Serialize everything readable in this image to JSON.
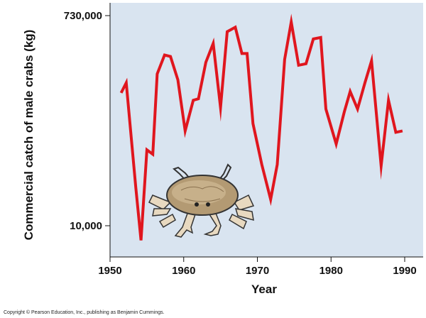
{
  "chart_data": {
    "type": "line",
    "title": "",
    "xlabel": "Year",
    "ylabel": "Commercial catch of male crabs (kg)",
    "xlim": [
      1950,
      1992
    ],
    "ylim": [
      0,
      800000
    ],
    "x_ticks": [
      {
        "value": 1950,
        "label": "1950"
      },
      {
        "value": 1960,
        "label": "1960"
      },
      {
        "value": 1970,
        "label": "1970"
      },
      {
        "value": 1980,
        "label": "1980"
      },
      {
        "value": 1990,
        "label": "1990"
      }
    ],
    "y_ticks": [
      {
        "value": 730000,
        "label": "730,000"
      },
      {
        "value": 10000,
        "label": "10,000"
      }
    ],
    "grid": false,
    "series": [
      {
        "name": "",
        "color": "#e0161e",
        "x": [
          1951.5,
          1952.2,
          1953.5,
          1954.2,
          1955,
          1955.8,
          1956.4,
          1957.4,
          1958.2,
          1959.2,
          1960.2,
          1961.3,
          1962,
          1963,
          1964,
          1965,
          1965.9,
          1967,
          1967.9,
          1968.6,
          1969.4,
          1970.6,
          1971.8,
          1972.7,
          1973.7,
          1974.6,
          1975.6,
          1976.6,
          1977.6,
          1978.6,
          1979.3,
          1980.7,
          1981.8,
          1982.6,
          1983.6,
          1984.6,
          1985.5,
          1986.8,
          1987.8,
          1988.8,
          1989.7
        ],
        "y": [
          465000,
          500000,
          140000,
          -40000,
          270000,
          255000,
          530000,
          595000,
          590000,
          510000,
          335000,
          440000,
          445000,
          570000,
          635000,
          415000,
          675000,
          690000,
          600000,
          600000,
          360000,
          220000,
          100000,
          220000,
          580000,
          708000,
          560000,
          565000,
          650000,
          655000,
          410000,
          290000,
          400000,
          470000,
          410000,
          500000,
          575000,
          215000,
          440000,
          330000,
          335000
        ]
      }
    ]
  },
  "footer": {
    "copyright": "Copyright © Pearson Education, Inc., publishing as Benjamin Cummings."
  }
}
